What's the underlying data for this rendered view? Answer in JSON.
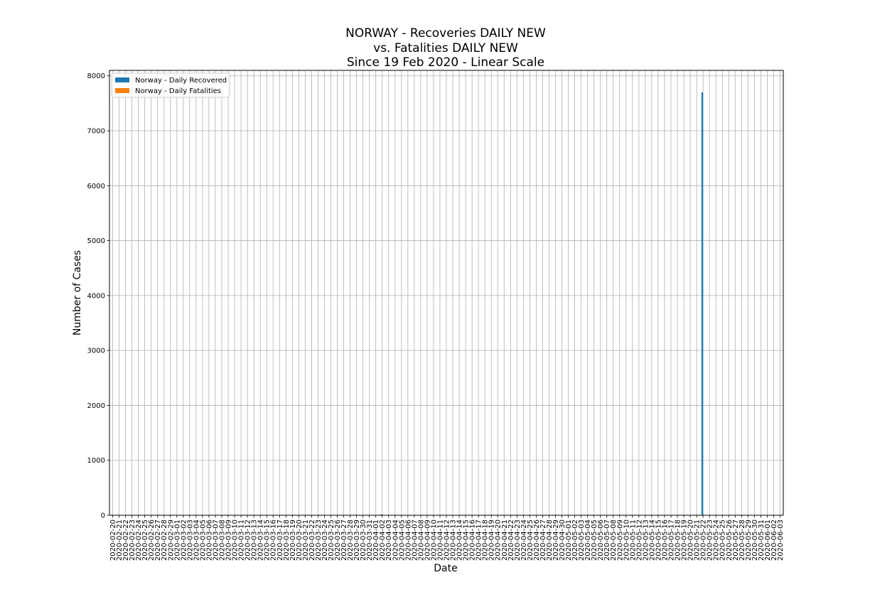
{
  "chart_data": {
    "type": "bar",
    "title_lines": [
      "NORWAY - Recoveries DAILY NEW",
      "vs. Fatalities DAILY NEW",
      "Since 19 Feb 2020 - Linear Scale"
    ],
    "xlabel": "Date",
    "ylabel": "Number of Cases",
    "ylim": [
      0,
      8100
    ],
    "yticks": [
      0,
      1000,
      2000,
      3000,
      4000,
      5000,
      6000,
      7000,
      8000
    ],
    "grid": true,
    "legend_position": "top-left",
    "categories": [
      "2020-02-20",
      "2020-02-21",
      "2020-02-22",
      "2020-02-23",
      "2020-02-24",
      "2020-02-25",
      "2020-02-26",
      "2020-02-27",
      "2020-02-28",
      "2020-02-29",
      "2020-03-01",
      "2020-03-02",
      "2020-03-03",
      "2020-03-04",
      "2020-03-05",
      "2020-03-06",
      "2020-03-07",
      "2020-03-08",
      "2020-03-09",
      "2020-03-10",
      "2020-03-11",
      "2020-03-12",
      "2020-03-13",
      "2020-03-14",
      "2020-03-15",
      "2020-03-16",
      "2020-03-17",
      "2020-03-18",
      "2020-03-19",
      "2020-03-20",
      "2020-03-21",
      "2020-03-22",
      "2020-03-23",
      "2020-03-24",
      "2020-03-25",
      "2020-03-26",
      "2020-03-27",
      "2020-03-28",
      "2020-03-29",
      "2020-03-30",
      "2020-03-31",
      "2020-04-01",
      "2020-04-02",
      "2020-04-03",
      "2020-04-04",
      "2020-04-05",
      "2020-04-06",
      "2020-04-07",
      "2020-04-08",
      "2020-04-09",
      "2020-04-10",
      "2020-04-11",
      "2020-04-12",
      "2020-04-13",
      "2020-04-14",
      "2020-04-15",
      "2020-04-16",
      "2020-04-17",
      "2020-04-18",
      "2020-04-19",
      "2020-04-20",
      "2020-04-21",
      "2020-04-22",
      "2020-04-23",
      "2020-04-24",
      "2020-04-25",
      "2020-04-26",
      "2020-04-27",
      "2020-04-28",
      "2020-04-29",
      "2020-04-30",
      "2020-05-01",
      "2020-05-02",
      "2020-05-03",
      "2020-05-04",
      "2020-05-05",
      "2020-05-06",
      "2020-05-07",
      "2020-05-08",
      "2020-05-09",
      "2020-05-10",
      "2020-05-11",
      "2020-05-12",
      "2020-05-13",
      "2020-05-14",
      "2020-05-15",
      "2020-05-16",
      "2020-05-17",
      "2020-05-18",
      "2020-05-19",
      "2020-05-20",
      "2020-05-21",
      "2020-05-22",
      "2020-05-23",
      "2020-05-24",
      "2020-05-25",
      "2020-05-26",
      "2020-05-27",
      "2020-05-28",
      "2020-05-29",
      "2020-05-30",
      "2020-05-31",
      "2020-06-01",
      "2020-06-02",
      "2020-06-03"
    ],
    "series": [
      {
        "name": "Norway - Daily Recovered",
        "color": "#1f77b4",
        "values": [
          0,
          0,
          0,
          0,
          0,
          0,
          0,
          0,
          0,
          0,
          0,
          0,
          0,
          0,
          0,
          0,
          0,
          0,
          0,
          0,
          0,
          0,
          0,
          0,
          0,
          0,
          0,
          0,
          0,
          0,
          0,
          0,
          0,
          0,
          6,
          0,
          0,
          0,
          0,
          0,
          6,
          6,
          17,
          0,
          0,
          0,
          0,
          0,
          0,
          0,
          0,
          0,
          0,
          0,
          0,
          0,
          0,
          0,
          0,
          0,
          0,
          0,
          0,
          0,
          0,
          0,
          0,
          0,
          0,
          0,
          0,
          0,
          0,
          0,
          0,
          0,
          0,
          0,
          0,
          0,
          0,
          0,
          0,
          0,
          0,
          0,
          0,
          0,
          0,
          0,
          0,
          0,
          7700,
          0,
          0,
          0,
          0,
          0,
          0,
          0,
          0,
          0,
          0,
          0,
          0
        ]
      },
      {
        "name": "Norway - Daily Fatalities",
        "color": "#ff7f0e",
        "values": [
          0,
          0,
          0,
          0,
          0,
          0,
          0,
          0,
          0,
          0,
          0,
          0,
          0,
          0,
          0,
          0,
          0,
          0,
          0,
          0,
          0,
          0,
          0,
          0,
          1,
          0,
          0,
          0,
          0,
          4,
          0,
          0,
          3,
          0,
          3,
          0,
          0,
          4,
          3,
          7,
          7,
          4,
          6,
          4,
          2,
          3,
          7,
          7,
          6,
          4,
          3,
          2,
          6,
          5,
          6,
          3,
          6,
          3,
          1,
          1,
          4,
          3,
          1,
          1,
          2,
          1,
          0,
          0,
          1,
          0,
          1,
          0,
          0,
          0,
          0,
          0,
          2,
          0,
          0,
          0,
          0,
          0,
          0,
          1,
          1,
          0,
          0,
          0,
          0,
          0,
          0,
          0,
          0,
          0,
          0,
          0,
          0,
          0,
          0,
          0,
          0,
          0,
          0,
          0,
          0
        ]
      }
    ]
  }
}
